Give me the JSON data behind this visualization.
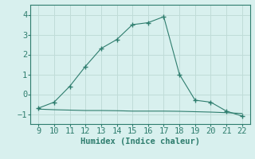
{
  "x": [
    9,
    10,
    11,
    12,
    13,
    14,
    15,
    16,
    17,
    18,
    19,
    20,
    21,
    22
  ],
  "y_curve": [
    -0.7,
    -0.4,
    0.4,
    1.4,
    2.3,
    2.75,
    3.5,
    3.6,
    3.9,
    1.0,
    -0.3,
    -0.4,
    -0.85,
    -1.1
  ],
  "y_flat": [
    -0.75,
    -0.78,
    -0.8,
    -0.82,
    -0.82,
    -0.83,
    -0.85,
    -0.85,
    -0.85,
    -0.86,
    -0.88,
    -0.9,
    -0.93,
    -0.97
  ],
  "line_color": "#2e7d6e",
  "bg_color": "#d8f0ee",
  "grid_color": "#c0dcd8",
  "xlabel": "Humidex (Indice chaleur)",
  "ylim": [
    -1.5,
    4.5
  ],
  "xlim": [
    8.5,
    22.5
  ],
  "yticks": [
    -1,
    0,
    1,
    2,
    3,
    4
  ],
  "xticks": [
    9,
    10,
    11,
    12,
    13,
    14,
    15,
    16,
    17,
    18,
    19,
    20,
    21,
    22
  ],
  "font_size": 7.5
}
